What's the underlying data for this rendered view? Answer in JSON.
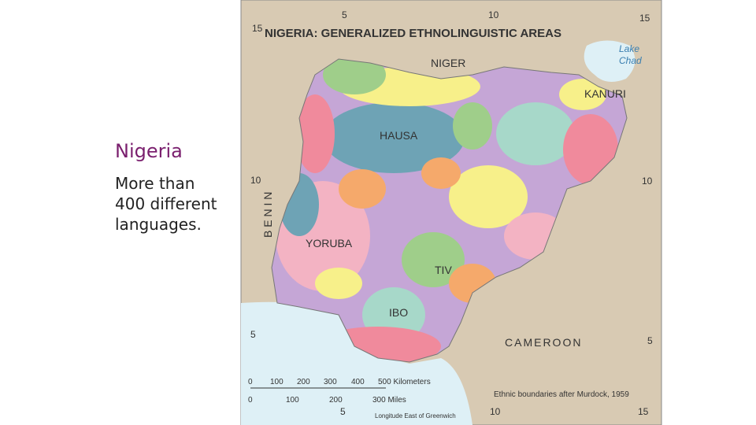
{
  "slide": {
    "title": "Nigeria",
    "body": [
      "More than",
      "400 different",
      "languages."
    ]
  },
  "map": {
    "title": "NIGERIA: GENERALIZED ETHNOLINGUISTIC AREAS",
    "places": {
      "niger": "NIGER",
      "lake": [
        "Lake",
        "Chad"
      ],
      "kanuri": "KANURI",
      "hausa": "HAUSA",
      "benin": "B E N I N",
      "yoruba": "YORUBA",
      "tiv": "TIV",
      "ibo": "IBO",
      "cameroon": "CAMEROON"
    },
    "grid": {
      "top": [
        "5",
        "10",
        "15"
      ],
      "left": [
        "15",
        "10",
        "5"
      ],
      "right": [
        "10",
        "5"
      ],
      "bottom": [
        "5",
        "10",
        "15"
      ]
    },
    "scale": {
      "km": [
        "0",
        "100",
        "200",
        "300",
        "400",
        "500 Kilometers"
      ],
      "miles": [
        "0",
        "100",
        "200",
        "300 Miles"
      ]
    },
    "credit": "Ethnic boundaries after Murdock, 1959",
    "longitude": "Longitude East of Greenwich"
  }
}
